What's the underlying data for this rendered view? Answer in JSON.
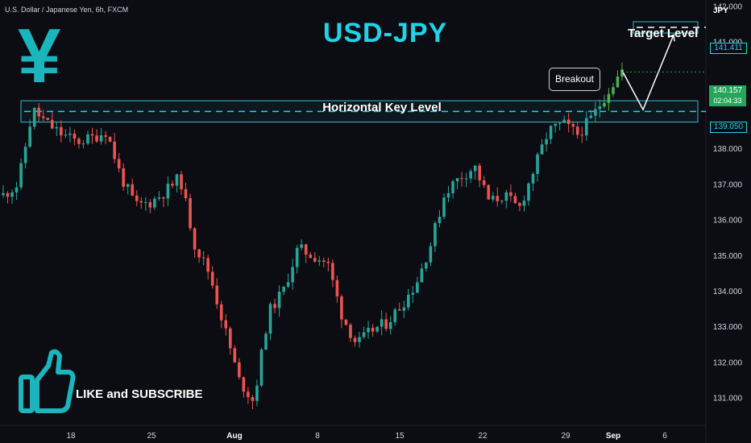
{
  "symbol_header": "U.S. Dollar / Japanese Yen, 6h, FXCM",
  "currency_label": "JPY",
  "title": "USD-JPY",
  "yen_glyph": "¥",
  "callouts": {
    "target_level": "Target Level",
    "horizontal_key_level": "Horizontal Key Level",
    "breakout": "Breakout",
    "like_subscribe": "LIKE and SUBSCRIBE"
  },
  "price_axis": {
    "ticks": [
      "142.000",
      "141.000",
      "138.000",
      "137.000",
      "136.000",
      "135.000",
      "134.000",
      "133.000",
      "132.000",
      "131.000"
    ],
    "tick_values": [
      142,
      141,
      138,
      137,
      136,
      135,
      134,
      133,
      132,
      131
    ],
    "target_value": 141.411,
    "target_tag": "141.411",
    "key_level_value": 139.05,
    "key_level_tag": "139.050",
    "last_price": 140.157,
    "last_price_tag": "140.157",
    "countdown": "02:04:33"
  },
  "time_axis": {
    "labels": [
      "18",
      "25",
      "Aug",
      "8",
      "15",
      "22",
      "29",
      "Sep",
      "6"
    ]
  },
  "colors": {
    "up": "#26a69a",
    "up_green": "#4caf50",
    "down": "#ef5350",
    "accent": "#1fd3e8",
    "zone_border": "#38b8c9",
    "text": "#d1d4dc",
    "background": "#0b0d12"
  },
  "chart_data": {
    "type": "candlestick",
    "title": "USD-JPY",
    "ylim": [
      130.5,
      142.3
    ],
    "levels": {
      "key_level": 139.05,
      "zone_low": 138.75,
      "zone_high": 139.35,
      "target": 141.411
    },
    "x_categories": [
      "18",
      "25",
      "Aug",
      "8",
      "15",
      "22",
      "29",
      "Sep",
      "6"
    ],
    "approx_closes": [
      136.7,
      137.0,
      139.1,
      138.7,
      138.4,
      138.2,
      138.3,
      138.5,
      137.2,
      136.4,
      136.5,
      136.8,
      137.2,
      135.3,
      134.5,
      133.0,
      131.5,
      130.9,
      133.4,
      134.0,
      135.2,
      135.0,
      134.8,
      133.3,
      132.5,
      132.9,
      133.1,
      133.6,
      134.2,
      135.3,
      136.8,
      137.2,
      137.5,
      136.5,
      136.7,
      136.3,
      137.4,
      138.5,
      138.7,
      138.4,
      138.9,
      139.6,
      140.2
    ],
    "projected_path": [
      140.2,
      139.1,
      141.2
    ]
  }
}
